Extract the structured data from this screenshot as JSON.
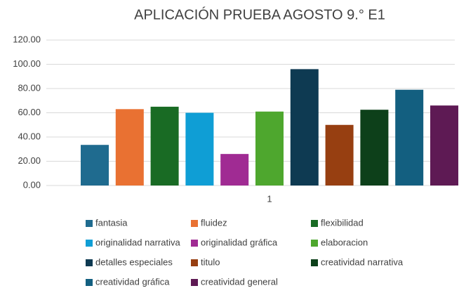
{
  "chart_data": {
    "type": "bar",
    "title": "APLICACIÓN PRUEBA AGOSTO 9.° E1",
    "categories": [
      "1"
    ],
    "series": [
      {
        "name": "fantasia",
        "color": "#1f6b8f",
        "values": [
          33.5
        ]
      },
      {
        "name": "fluidez",
        "color": "#e97132",
        "values": [
          63
        ]
      },
      {
        "name": "flexibilidad",
        "color": "#196b24",
        "values": [
          65
        ]
      },
      {
        "name": "originalidad narrativa",
        "color": "#0f9ed5",
        "values": [
          60
        ]
      },
      {
        "name": "originalidad gráfica",
        "color": "#a02b93",
        "values": [
          26
        ]
      },
      {
        "name": "elaboracion",
        "color": "#4ea72e",
        "values": [
          61
        ]
      },
      {
        "name": "detalles especiales",
        "color": "#0e3a52",
        "values": [
          96
        ]
      },
      {
        "name": "titulo",
        "color": "#973f11",
        "values": [
          50
        ]
      },
      {
        "name": "creatividad narrativa",
        "color": "#0d401a",
        "values": [
          62.5
        ]
      },
      {
        "name": "creatividad gráfica",
        "color": "#135f80",
        "values": [
          79
        ]
      },
      {
        "name": "creatividad general",
        "color": "#5e1a54",
        "values": [
          66
        ]
      }
    ],
    "ylim": [
      0,
      120
    ],
    "yticks": [
      {
        "value": 0,
        "label": "0.00"
      },
      {
        "value": 20,
        "label": "20.00"
      },
      {
        "value": 40,
        "label": "40.00"
      },
      {
        "value": 60,
        "label": "60.00"
      },
      {
        "value": 80,
        "label": "80.00"
      },
      {
        "value": 100,
        "label": "100.00"
      },
      {
        "value": 120,
        "label": "120.00"
      }
    ],
    "grid": true,
    "legend": "bottom"
  }
}
